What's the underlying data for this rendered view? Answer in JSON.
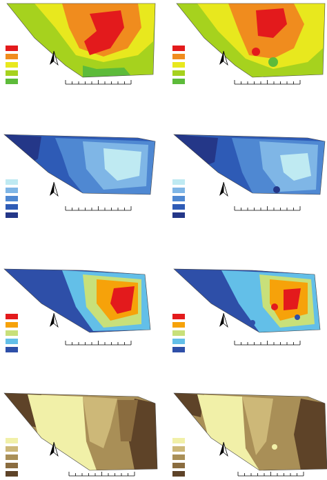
{
  "figure": {
    "panels": [
      {
        "id": "r1-left",
        "palette": "heat",
        "legend": [
          "#e31a1c",
          "#f08c1e",
          "#e8e81e",
          "#a6d21e",
          "#5dbb3a"
        ]
      },
      {
        "id": "r1-right",
        "palette": "heat",
        "legend": [
          "#e31a1c",
          "#f08c1e",
          "#e8e81e",
          "#a6d21e",
          "#5dbb3a"
        ]
      },
      {
        "id": "r2-left",
        "palette": "blue",
        "legend": [
          "#bfeaf2",
          "#7fb6e6",
          "#4f88d2",
          "#2e5bb6",
          "#243788"
        ]
      },
      {
        "id": "r2-right",
        "palette": "blue",
        "legend": [
          "#bfeaf2",
          "#7fb6e6",
          "#4f88d2",
          "#2e5bb6",
          "#243788"
        ]
      },
      {
        "id": "r3-left",
        "palette": "spectral",
        "legend": [
          "#e31a1c",
          "#f6a20a",
          "#c8e07a",
          "#63bfe8",
          "#2e4fa8"
        ]
      },
      {
        "id": "r3-right",
        "palette": "spectral",
        "legend": [
          "#e31a1c",
          "#f6a20a",
          "#c8e07a",
          "#63bfe8",
          "#2e4fa8"
        ]
      },
      {
        "id": "r4-left",
        "palette": "brown",
        "legend": [
          "#f1f0a8",
          "#cdb878",
          "#a98f57",
          "#8a6c3f",
          "#5e4328"
        ]
      },
      {
        "id": "r4-right",
        "palette": "brown",
        "legend": [
          "#f1f0a8",
          "#cdb878",
          "#a98f57",
          "#8a6c3f",
          "#5e4328"
        ]
      }
    ],
    "north_arrow": "north-arrow-icon",
    "scale_bar": "scale-bar"
  }
}
